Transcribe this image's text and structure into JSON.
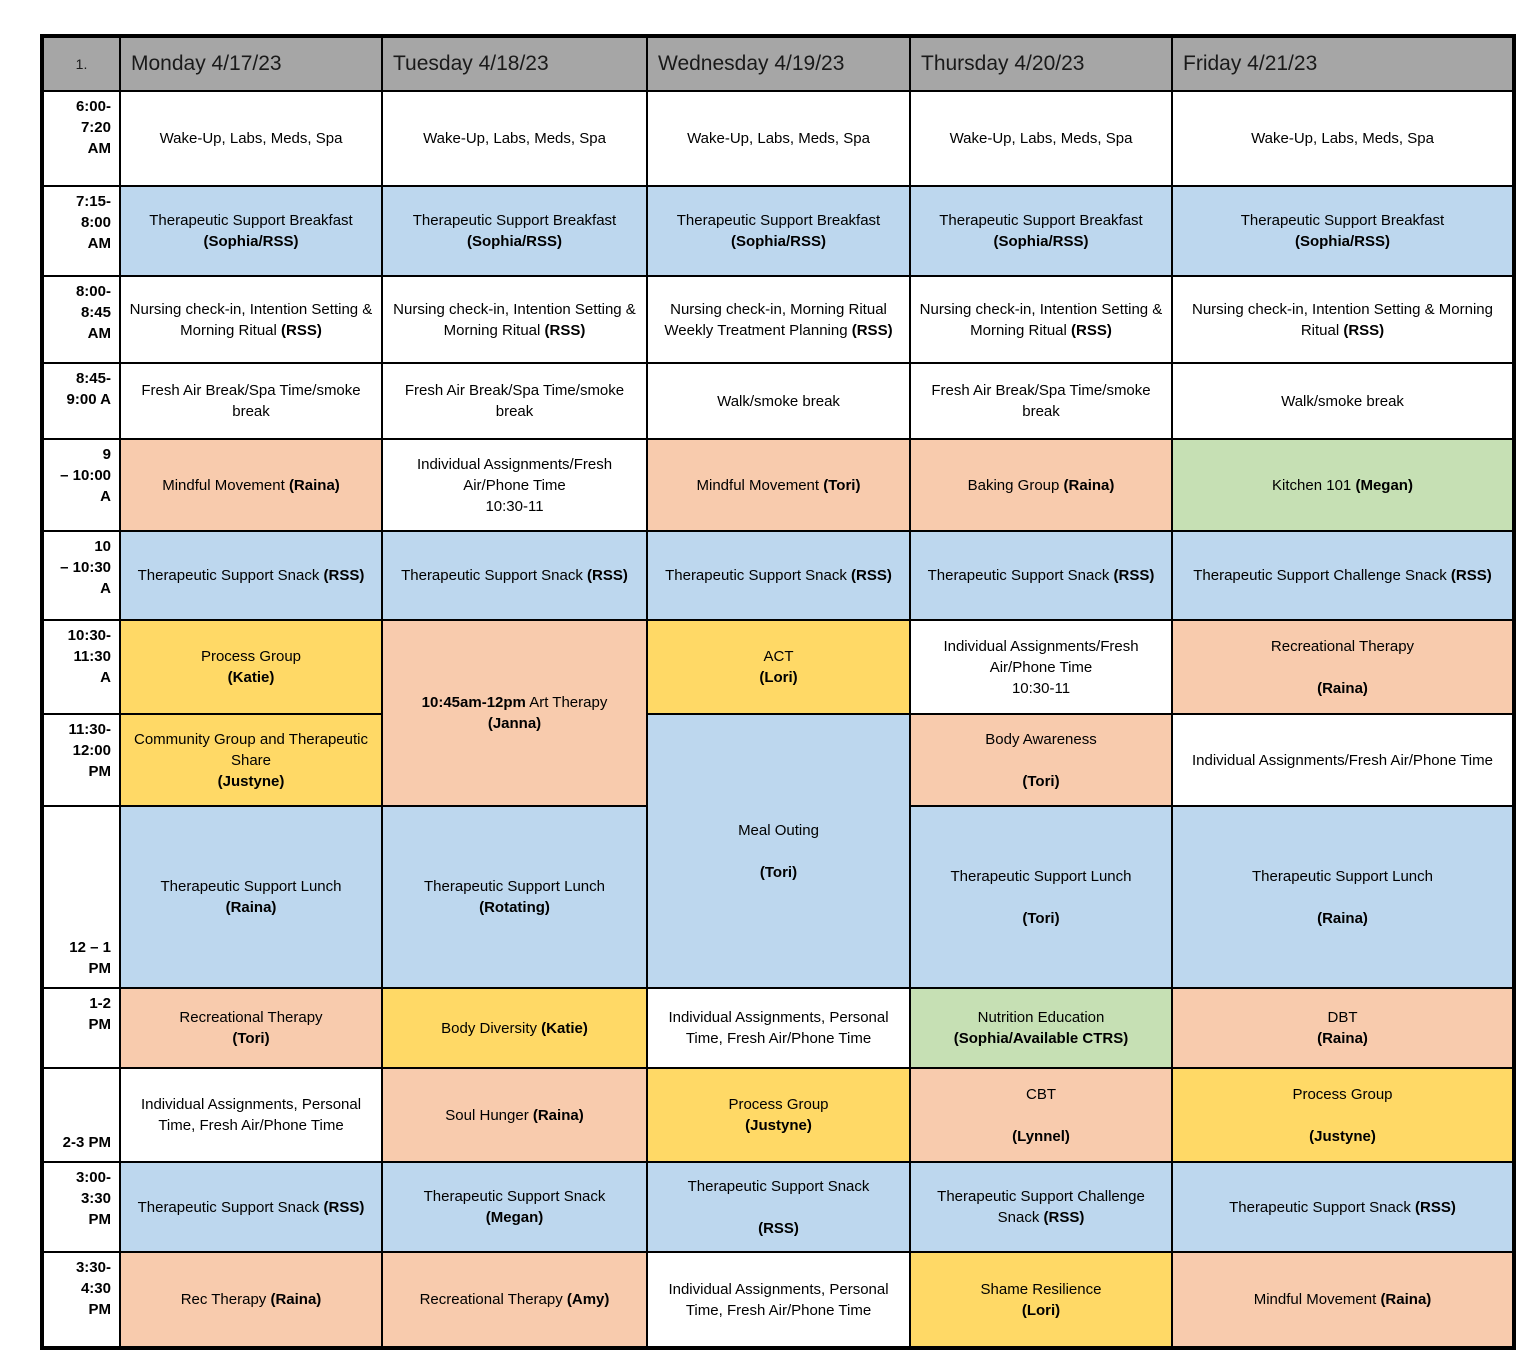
{
  "page": {
    "corner_label": "1."
  },
  "colors": {
    "header_bg": "#a6a6a6",
    "snack_meal_blue": "#bdd7ee",
    "activity_orange": "#f8cbad",
    "group_yellow": "#ffd966",
    "education_green": "#c6e0b4",
    "border": "#000000"
  },
  "days": [
    "Monday 4/17/23",
    "Tuesday  4/18/23",
    "Wednesday 4/19/23",
    "Thursday 4/20/23",
    "Friday 4/21/23"
  ],
  "rows": [
    {
      "time": "6:00-\n7:20\nAM",
      "mon": {
        "main": "Wake-Up, Labs, Meds, Spa"
      },
      "tue": {
        "main": "Wake-Up, Labs, Meds, Spa"
      },
      "wed": {
        "main": "Wake-Up, Labs, Meds, Spa"
      },
      "thu": {
        "main": "Wake-Up, Labs, Meds, Spa"
      },
      "fri": {
        "main": "Wake-Up, Labs, Meds, Spa"
      }
    },
    {
      "time": "7:15-\n8:00\nAM",
      "mon": {
        "main": "Therapeutic Support Breakfast",
        "bold": "(Sophia/RSS)"
      },
      "tue": {
        "main": "Therapeutic Support Breakfast",
        "bold": "(Sophia/RSS)"
      },
      "wed": {
        "main": "Therapeutic Support Breakfast",
        "bold": "(Sophia/RSS)"
      },
      "thu": {
        "main": "Therapeutic Support Breakfast",
        "bold": "(Sophia/RSS)"
      },
      "fri": {
        "main": "Therapeutic Support Breakfast",
        "bold": "(Sophia/RSS)"
      }
    },
    {
      "time": "8:00-\n8:45\nAM",
      "mon": {
        "main": "Nursing check-in, Intention Setting & Morning Ritual",
        "bold": "(RSS)"
      },
      "tue": {
        "main": "Nursing check-in, Intention Setting & Morning Ritual",
        "bold": "(RSS)"
      },
      "wed": {
        "main": "Nursing check-in, Morning Ritual Weekly Treatment Planning",
        "bold": "(RSS)"
      },
      "thu": {
        "main": "Nursing check-in, Intention Setting & Morning Ritual",
        "bold": "(RSS)"
      },
      "fri": {
        "main": "Nursing check-in, Intention Setting & Morning Ritual",
        "bold": "(RSS)"
      }
    },
    {
      "time": "8:45-\n9:00 A",
      "mon": {
        "main": "Fresh Air Break/Spa Time/smoke break"
      },
      "tue": {
        "main": "Fresh Air Break/Spa Time/smoke break"
      },
      "wed": {
        "main": "Walk/smoke break"
      },
      "thu": {
        "main": "Fresh Air Break/Spa Time/smoke break"
      },
      "fri": {
        "main": "Walk/smoke break"
      }
    },
    {
      "time": "9\n– 10:00\nA",
      "mon": {
        "main": "Mindful Movement",
        "bold": "(Raina)"
      },
      "tue": {
        "main": "Individual Assignments/Fresh Air/Phone Time\n10:30-11"
      },
      "wed": {
        "main": "Mindful Movement",
        "bold": "(Tori)"
      },
      "thu": {
        "main": "Baking Group",
        "bold": "(Raina)"
      },
      "fri": {
        "main": "Kitchen 101",
        "bold": "(Megan)"
      }
    },
    {
      "time": "10\n– 10:30\nA",
      "mon": {
        "main": "Therapeutic Support Snack",
        "bold": "(RSS)"
      },
      "tue": {
        "main": "Therapeutic Support Snack",
        "bold": "(RSS)"
      },
      "wed": {
        "main": "Therapeutic Support Snack",
        "bold": "(RSS)"
      },
      "thu": {
        "main": "Therapeutic Support Snack",
        "bold": "(RSS)"
      },
      "fri": {
        "main": "Therapeutic Support Challenge Snack",
        "bold": "(RSS)"
      }
    },
    {
      "time": "10:30-\n11:30\nA",
      "mon": {
        "main": "Process Group",
        "bold": "(Katie)"
      },
      "tue": {
        "pre_bold": "10:45am-12pm",
        "main": "Art Therapy",
        "bold": "(Janna)"
      },
      "wed": {
        "main": "ACT",
        "bold": "(Lori)"
      },
      "thu": {
        "main": "Individual Assignments/Fresh Air/Phone Time\n10:30-11"
      },
      "fri": {
        "main": "Recreational Therapy",
        "bold": "(Raina)"
      }
    },
    {
      "time": "11:30-\n12:00\nPM",
      "mon": {
        "main": "Community Group and Therapeutic Share",
        "bold": "(Justyne)"
      },
      "wed": {
        "main": "Meal Outing",
        "bold": "(Tori)"
      },
      "thu": {
        "main": "Body Awareness",
        "bold": "(Tori)"
      },
      "fri": {
        "main": "Individual Assignments/Fresh Air/Phone Time"
      }
    },
    {
      "time": "12 – 1\nPM",
      "mon": {
        "main": "Therapeutic Support Lunch",
        "bold": "(Raina)"
      },
      "tue": {
        "main": "Therapeutic Support Lunch",
        "bold": "(Rotating)"
      },
      "thu": {
        "main": "Therapeutic Support Lunch",
        "bold": "(Tori)"
      },
      "fri": {
        "main": "Therapeutic Support Lunch",
        "bold": "(Raina)"
      }
    },
    {
      "time": "1-2\nPM",
      "mon": {
        "main": "Recreational Therapy",
        "bold": "(Tori)"
      },
      "tue": {
        "main": "Body Diversity",
        "bold": "(Katie)"
      },
      "wed": {
        "main": "Individual Assignments, Personal Time, Fresh Air/Phone Time"
      },
      "thu": {
        "main": "Nutrition Education",
        "bold": "(Sophia/Available CTRS)"
      },
      "fri": {
        "main": "DBT",
        "bold": "(Raina)"
      }
    },
    {
      "time": "2-3 PM",
      "mon": {
        "main": "Individual Assignments, Personal Time, Fresh Air/Phone Time"
      },
      "tue": {
        "main": "Soul Hunger",
        "bold": "(Raina)"
      },
      "wed": {
        "main": "Process Group",
        "bold": "(Justyne)"
      },
      "thu": {
        "main": "CBT",
        "bold": "(Lynnel)"
      },
      "fri": {
        "main": "Process Group",
        "bold": "(Justyne)"
      }
    },
    {
      "time": "3:00-\n3:30\nPM",
      "mon": {
        "main": "Therapeutic Support Snack",
        "bold": "(RSS)"
      },
      "tue": {
        "main": "Therapeutic Support Snack",
        "bold": "(Megan)"
      },
      "wed": {
        "main": "Therapeutic Support Snack",
        "bold": "(RSS)"
      },
      "thu": {
        "main": "Therapeutic Support Challenge Snack",
        "bold": "(RSS)"
      },
      "fri": {
        "main": "Therapeutic Support Snack",
        "bold": "(RSS)"
      }
    },
    {
      "time": "3:30-\n4:30\nPM",
      "mon": {
        "main": "Rec Therapy",
        "bold": "(Raina)"
      },
      "tue": {
        "main": "Recreational Therapy",
        "bold": "(Amy)"
      },
      "wed": {
        "main": "Individual Assignments, Personal Time, Fresh Air/Phone Time"
      },
      "thu": {
        "main": "Shame Resilience",
        "bold": "(Lori)"
      },
      "fri": {
        "main": "Mindful Movement",
        "bold": "(Raina)"
      }
    }
  ]
}
